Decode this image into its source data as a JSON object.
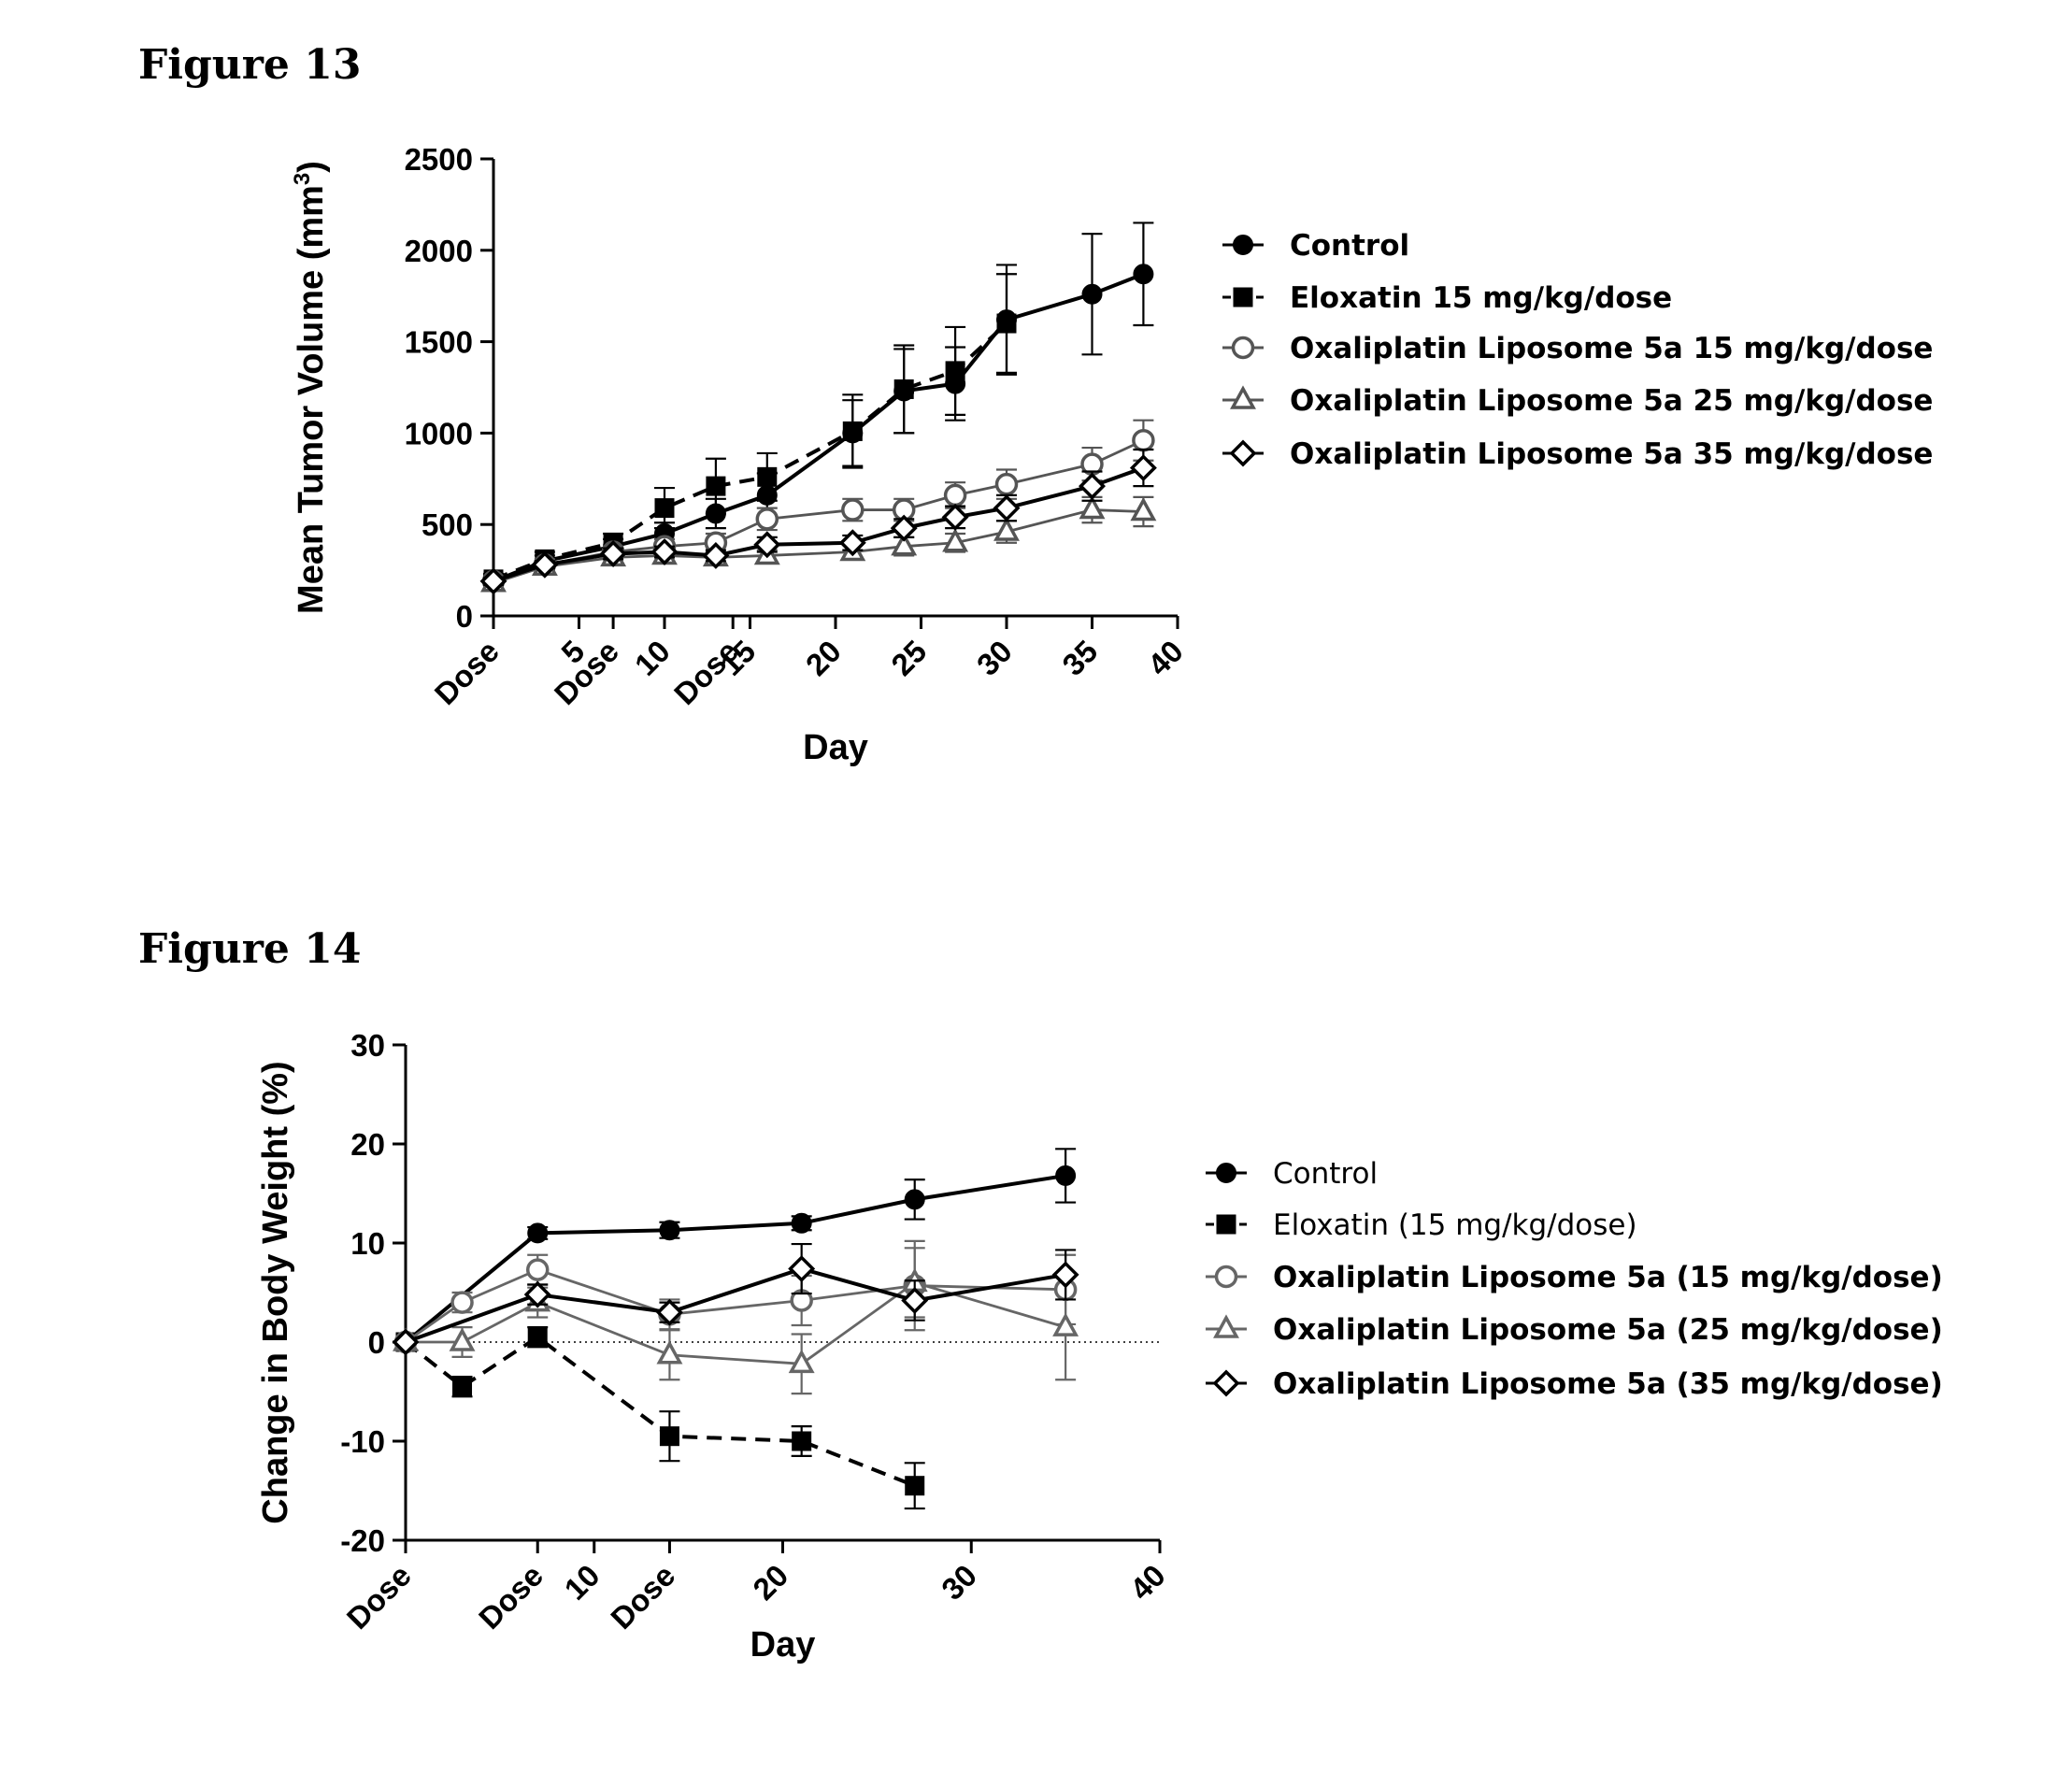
{
  "figures": [
    {
      "title": "Figure 13"
    },
    {
      "title": "Figure 14"
    }
  ],
  "chart_data": [
    {
      "type": "line",
      "xlabel": "Day",
      "ylabel": "Mean Tumor Volume (mm3)",
      "ylabel_parts": [
        "Mean Tumor Volume (mm",
        "3",
        ")"
      ],
      "xlim": [
        0,
        40
      ],
      "ylim": [
        0,
        2500
      ],
      "yticks": [
        0,
        500,
        1000,
        1500,
        2000,
        2500
      ],
      "xticks": [
        {
          "v": 0,
          "label": "Dose"
        },
        {
          "v": 5,
          "label": "5"
        },
        {
          "v": 7,
          "label": "Dose"
        },
        {
          "v": 10,
          "label": "10"
        },
        {
          "v": 14,
          "label": "Dose"
        },
        {
          "v": 15,
          "label": "15"
        },
        {
          "v": 20,
          "label": "20"
        },
        {
          "v": 25,
          "label": "25"
        },
        {
          "v": 30,
          "label": "30"
        },
        {
          "v": 35,
          "label": "35"
        },
        {
          "v": 40,
          "label": "40"
        }
      ],
      "grid": false,
      "legend_position": "right",
      "series": [
        {
          "name": "Control",
          "marker": "circle-filled",
          "dash": false,
          "color": "#000000",
          "x": [
            0,
            3,
            7,
            10,
            13,
            16,
            21,
            24,
            27,
            30,
            35,
            38
          ],
          "y": [
            190,
            300,
            380,
            450,
            560,
            660,
            1000,
            1230,
            1270,
            1620,
            1760,
            1870
          ],
          "err": [
            30,
            30,
            40,
            60,
            80,
            120,
            180,
            230,
            200,
            300,
            330,
            280
          ]
        },
        {
          "name": "Eloxatin 15 mg/kg/dose",
          "marker": "square-filled",
          "dash": true,
          "color": "#000000",
          "x": [
            0,
            3,
            7,
            10,
            13,
            16,
            21,
            24,
            27,
            30
          ],
          "y": [
            200,
            310,
            400,
            590,
            710,
            760,
            1010,
            1240,
            1340,
            1600
          ],
          "err": [
            30,
            40,
            50,
            110,
            150,
            130,
            200,
            240,
            240,
            270
          ]
        },
        {
          "name": "Oxaliplatin Liposome 5a 15 mg/kg/dose",
          "marker": "circle-open",
          "dash": false,
          "color": "#555555",
          "x": [
            0,
            3,
            7,
            10,
            13,
            16,
            21,
            24,
            27,
            30,
            35,
            38
          ],
          "y": [
            190,
            280,
            350,
            380,
            400,
            530,
            580,
            580,
            660,
            720,
            830,
            960
          ],
          "err": [
            20,
            30,
            30,
            40,
            50,
            60,
            60,
            60,
            70,
            80,
            90,
            110
          ]
        },
        {
          "name": "Oxaliplatin Liposome 5a 25 mg/kg/dose",
          "marker": "triangle-open",
          "dash": false,
          "color": "#555555",
          "x": [
            0,
            3,
            7,
            10,
            13,
            16,
            21,
            24,
            27,
            30,
            35,
            38
          ],
          "y": [
            180,
            270,
            320,
            330,
            320,
            330,
            350,
            380,
            400,
            460,
            580,
            570
          ],
          "err": [
            20,
            20,
            30,
            30,
            30,
            30,
            40,
            50,
            50,
            60,
            70,
            80
          ]
        },
        {
          "name": "Oxaliplatin Liposome 5a 35 mg/kg/dose",
          "marker": "diamond-open",
          "dash": false,
          "color": "#000000",
          "x": [
            0,
            3,
            7,
            10,
            13,
            16,
            21,
            24,
            27,
            30,
            35,
            38
          ],
          "y": [
            190,
            280,
            340,
            350,
            330,
            390,
            400,
            480,
            540,
            590,
            710,
            810
          ],
          "err": [
            20,
            20,
            30,
            30,
            30,
            40,
            40,
            50,
            60,
            70,
            80,
            100
          ]
        }
      ]
    },
    {
      "type": "line",
      "xlabel": "Day",
      "ylabel": "Change in Body Weight (%)",
      "xlim": [
        0,
        40
      ],
      "ylim": [
        -20,
        30
      ],
      "yticks": [
        -20,
        -10,
        0,
        10,
        20,
        30
      ],
      "xticks": [
        {
          "v": 0,
          "label": "Dose"
        },
        {
          "v": 7,
          "label": "Dose"
        },
        {
          "v": 10,
          "label": "10"
        },
        {
          "v": 14,
          "label": "Dose"
        },
        {
          "v": 20,
          "label": "20"
        },
        {
          "v": 30,
          "label": "30"
        },
        {
          "v": 40,
          "label": "40"
        }
      ],
      "zero_line": true,
      "grid": false,
      "legend_position": "right",
      "series": [
        {
          "name": "Control",
          "marker": "circle-filled",
          "dash": false,
          "color": "#000000",
          "legend_weight": "normal",
          "x": [
            0,
            7,
            14,
            21,
            27,
            35
          ],
          "y": [
            0,
            11,
            11.3,
            12,
            14.4,
            16.8
          ],
          "err": [
            0,
            0.6,
            0.8,
            0.7,
            2,
            2.7
          ]
        },
        {
          "name": "Eloxatin (15 mg/kg/dose)",
          "marker": "square-filled",
          "dash": true,
          "color": "#000000",
          "legend_weight": "normal",
          "x": [
            0,
            3,
            7,
            14,
            21,
            27
          ],
          "y": [
            0,
            -4.5,
            0.5,
            -9.5,
            -10,
            -14.5
          ],
          "err": [
            0,
            1,
            1,
            2.5,
            1.5,
            2.3
          ]
        },
        {
          "name": "Oxaliplatin Liposome 5a (15 mg/kg/dose)",
          "marker": "circle-open",
          "dash": false,
          "color": "#666666",
          "legend_weight": "bold",
          "x": [
            0,
            3,
            7,
            14,
            21,
            27,
            35
          ],
          "y": [
            0,
            4,
            7.3,
            2.8,
            4.2,
            5.7,
            5.3
          ],
          "err": [
            0,
            1,
            1.5,
            1.5,
            2.5,
            4.5,
            3.5
          ]
        },
        {
          "name": "Oxaliplatin Liposome 5a (25 mg/kg/dose)",
          "marker": "triangle-open",
          "dash": false,
          "color": "#666666",
          "legend_weight": "bold",
          "x": [
            0,
            3,
            7,
            14,
            21,
            27,
            35
          ],
          "y": [
            0,
            0,
            4,
            -1.3,
            -2.2,
            6,
            1.5
          ],
          "err": [
            0,
            1.5,
            1.5,
            2.5,
            3,
            3.5,
            5.3
          ]
        },
        {
          "name": "Oxaliplatin Liposome 5a (35 mg/kg/dose)",
          "marker": "diamond-open",
          "dash": false,
          "color": "#000000",
          "legend_weight": "bold",
          "x": [
            0,
            7,
            14,
            21,
            27,
            35
          ],
          "y": [
            0,
            4.8,
            3,
            7.4,
            4.2,
            6.8
          ],
          "err": [
            0,
            1,
            1,
            2.5,
            2,
            2.5
          ]
        }
      ]
    }
  ]
}
